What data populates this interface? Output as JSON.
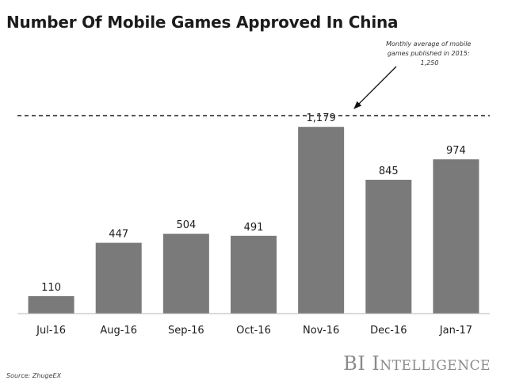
{
  "chart_data": {
    "type": "bar",
    "title": "Number Of Mobile Games Approved In China",
    "categories": [
      "Jul-16",
      "Aug-16",
      "Sep-16",
      "Oct-16",
      "Nov-16",
      "Dec-16",
      "Jan-17"
    ],
    "values": [
      110,
      447,
      504,
      491,
      1179,
      845,
      974
    ],
    "value_labels": [
      "110",
      "447",
      "504",
      "491",
      "1,179",
      "845",
      "974"
    ],
    "ylim": [
      0,
      1250
    ],
    "grid": false,
    "bar_color": "#7a7a7a",
    "reference_line": {
      "value": 1250,
      "style": "dashed",
      "annotation_lines": [
        "Monthly average of mobile",
        "games published in 2015:",
        "1,250"
      ]
    }
  },
  "footer": {
    "source": "Source: ZhugeEX",
    "brand": "BI Intelligence"
  }
}
